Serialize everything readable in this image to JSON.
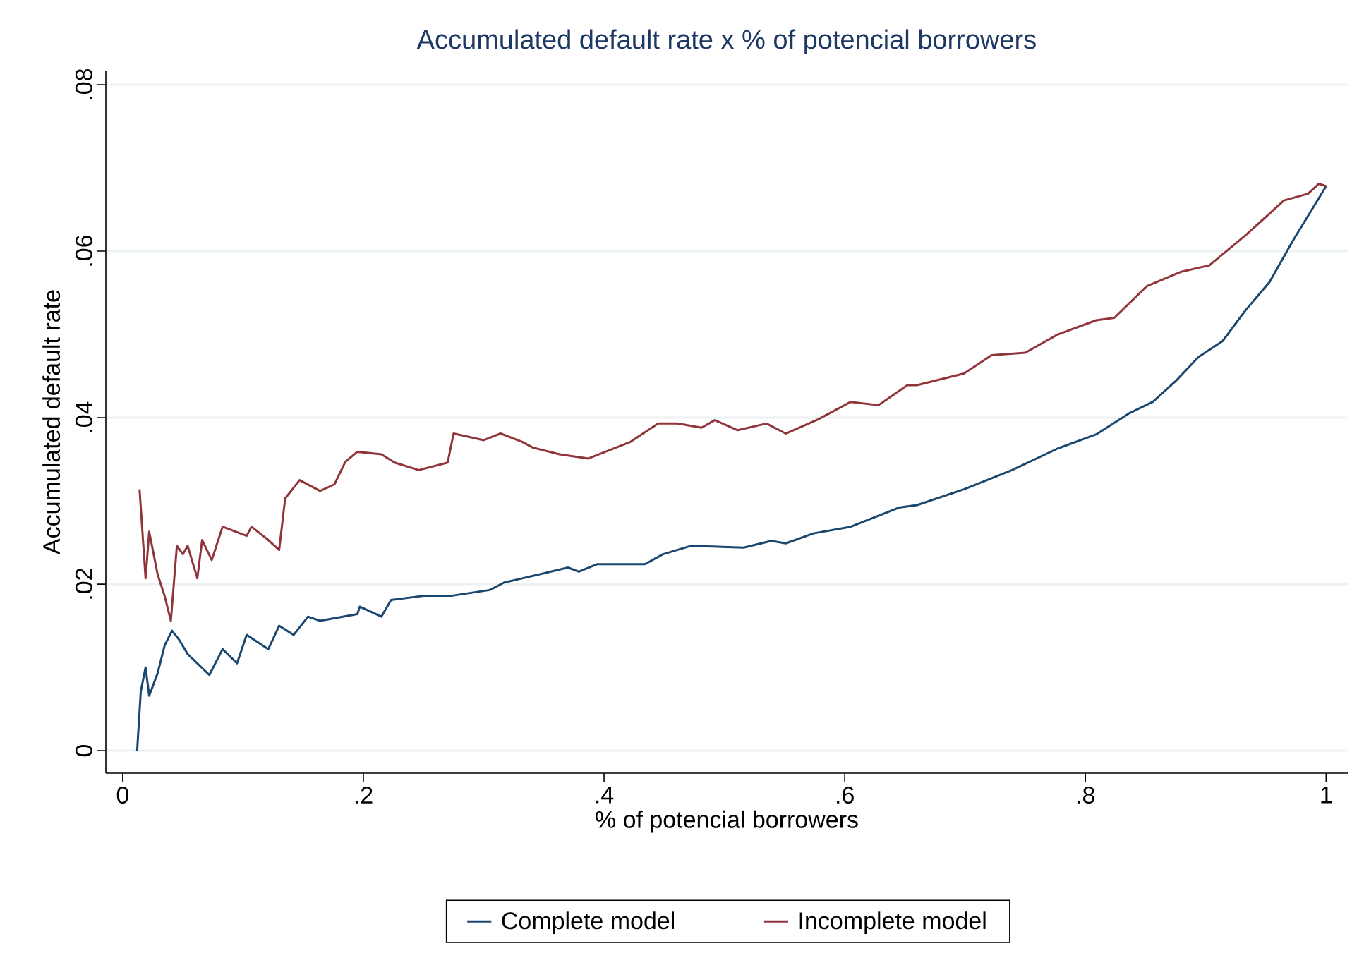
{
  "chart_data": {
    "type": "line",
    "title": "Accumulated default rate x % of potencial borrowers",
    "xlabel": "% of potencial borrowers",
    "ylabel": "Accumulated default rate",
    "xlim": [
      -0.014,
      1.018
    ],
    "ylim": [
      -0.0027,
      0.0817
    ],
    "xticks": [
      0,
      {
        "value": 0.2,
        "label": ".2"
      },
      {
        "value": 0.4,
        "label": ".4"
      },
      {
        "value": 0.6,
        "label": ".6"
      },
      {
        "value": 0.8,
        "label": ".8"
      },
      1
    ],
    "yticks": [
      0,
      {
        "value": 0.02,
        "label": ".02"
      },
      {
        "value": 0.04,
        "label": ".04"
      },
      {
        "value": 0.06,
        "label": ".06"
      },
      {
        "value": 0.08,
        "label": ".08"
      }
    ],
    "grid": "y",
    "legend": "bottom",
    "line_style": "solid",
    "marker": "none",
    "series": [
      {
        "name": "Complete model",
        "color": "#1a476f",
        "x": [
          0.012,
          0.015,
          0.019,
          0.022,
          0.029,
          0.035,
          0.041,
          0.047,
          0.054,
          0.072,
          0.083,
          0.095,
          0.103,
          0.121,
          0.13,
          0.142,
          0.154,
          0.164,
          0.195,
          0.197,
          0.215,
          0.223,
          0.25,
          0.273,
          0.305,
          0.317,
          0.332,
          0.341,
          0.37,
          0.379,
          0.394,
          0.434,
          0.449,
          0.472,
          0.516,
          0.539,
          0.551,
          0.574,
          0.605,
          0.645,
          0.66,
          0.699,
          0.739,
          0.777,
          0.809,
          0.836,
          0.856,
          0.875,
          0.894,
          0.914,
          0.933,
          0.953,
          0.973,
          1.0
        ],
        "values": [
          0,
          0.0071,
          0.01,
          0.0066,
          0.0093,
          0.0127,
          0.0144,
          0.0133,
          0.0116,
          0.0091,
          0.0122,
          0.0105,
          0.0139,
          0.0122,
          0.015,
          0.0139,
          0.0161,
          0.0156,
          0.0164,
          0.0173,
          0.0161,
          0.0181,
          0.0186,
          0.0186,
          0.0193,
          0.0202,
          0.0207,
          0.021,
          0.022,
          0.0215,
          0.0224,
          0.0224,
          0.0236,
          0.0246,
          0.0244,
          0.0252,
          0.0249,
          0.0261,
          0.0269,
          0.0292,
          0.0295,
          0.0314,
          0.0337,
          0.0363,
          0.038,
          0.0405,
          0.0419,
          0.0444,
          0.0473,
          0.0492,
          0.0529,
          0.0563,
          0.0614,
          0.0678
        ]
      },
      {
        "name": "Incomplete model",
        "color": "#90353b",
        "x": [
          0.014,
          0.019,
          0.022,
          0.029,
          0.035,
          0.04,
          0.045,
          0.05,
          0.054,
          0.062,
          0.066,
          0.074,
          0.083,
          0.103,
          0.107,
          0.121,
          0.13,
          0.135,
          0.147,
          0.164,
          0.176,
          0.185,
          0.195,
          0.215,
          0.226,
          0.246,
          0.27,
          0.275,
          0.3,
          0.314,
          0.332,
          0.341,
          0.363,
          0.387,
          0.422,
          0.445,
          0.461,
          0.481,
          0.492,
          0.511,
          0.535,
          0.551,
          0.578,
          0.605,
          0.628,
          0.652,
          0.66,
          0.699,
          0.722,
          0.75,
          0.777,
          0.809,
          0.824,
          0.851,
          0.879,
          0.903,
          0.933,
          0.965,
          0.985,
          0.994,
          1.0
        ],
        "values": [
          0.0314,
          0.0207,
          0.0263,
          0.0212,
          0.0185,
          0.0156,
          0.0246,
          0.0236,
          0.0246,
          0.0207,
          0.0253,
          0.0229,
          0.0269,
          0.0258,
          0.0269,
          0.0253,
          0.0241,
          0.0303,
          0.0325,
          0.0312,
          0.032,
          0.0347,
          0.0359,
          0.0356,
          0.0346,
          0.0337,
          0.0346,
          0.0381,
          0.0373,
          0.0381,
          0.0371,
          0.0364,
          0.0356,
          0.0351,
          0.0371,
          0.0393,
          0.0393,
          0.0388,
          0.0397,
          0.0385,
          0.0393,
          0.0381,
          0.0398,
          0.0419,
          0.0415,
          0.0439,
          0.0439,
          0.0453,
          0.0475,
          0.0478,
          0.05,
          0.0517,
          0.052,
          0.0558,
          0.0575,
          0.0583,
          0.0619,
          0.0661,
          0.0669,
          0.0681,
          0.0678
        ]
      }
    ]
  }
}
